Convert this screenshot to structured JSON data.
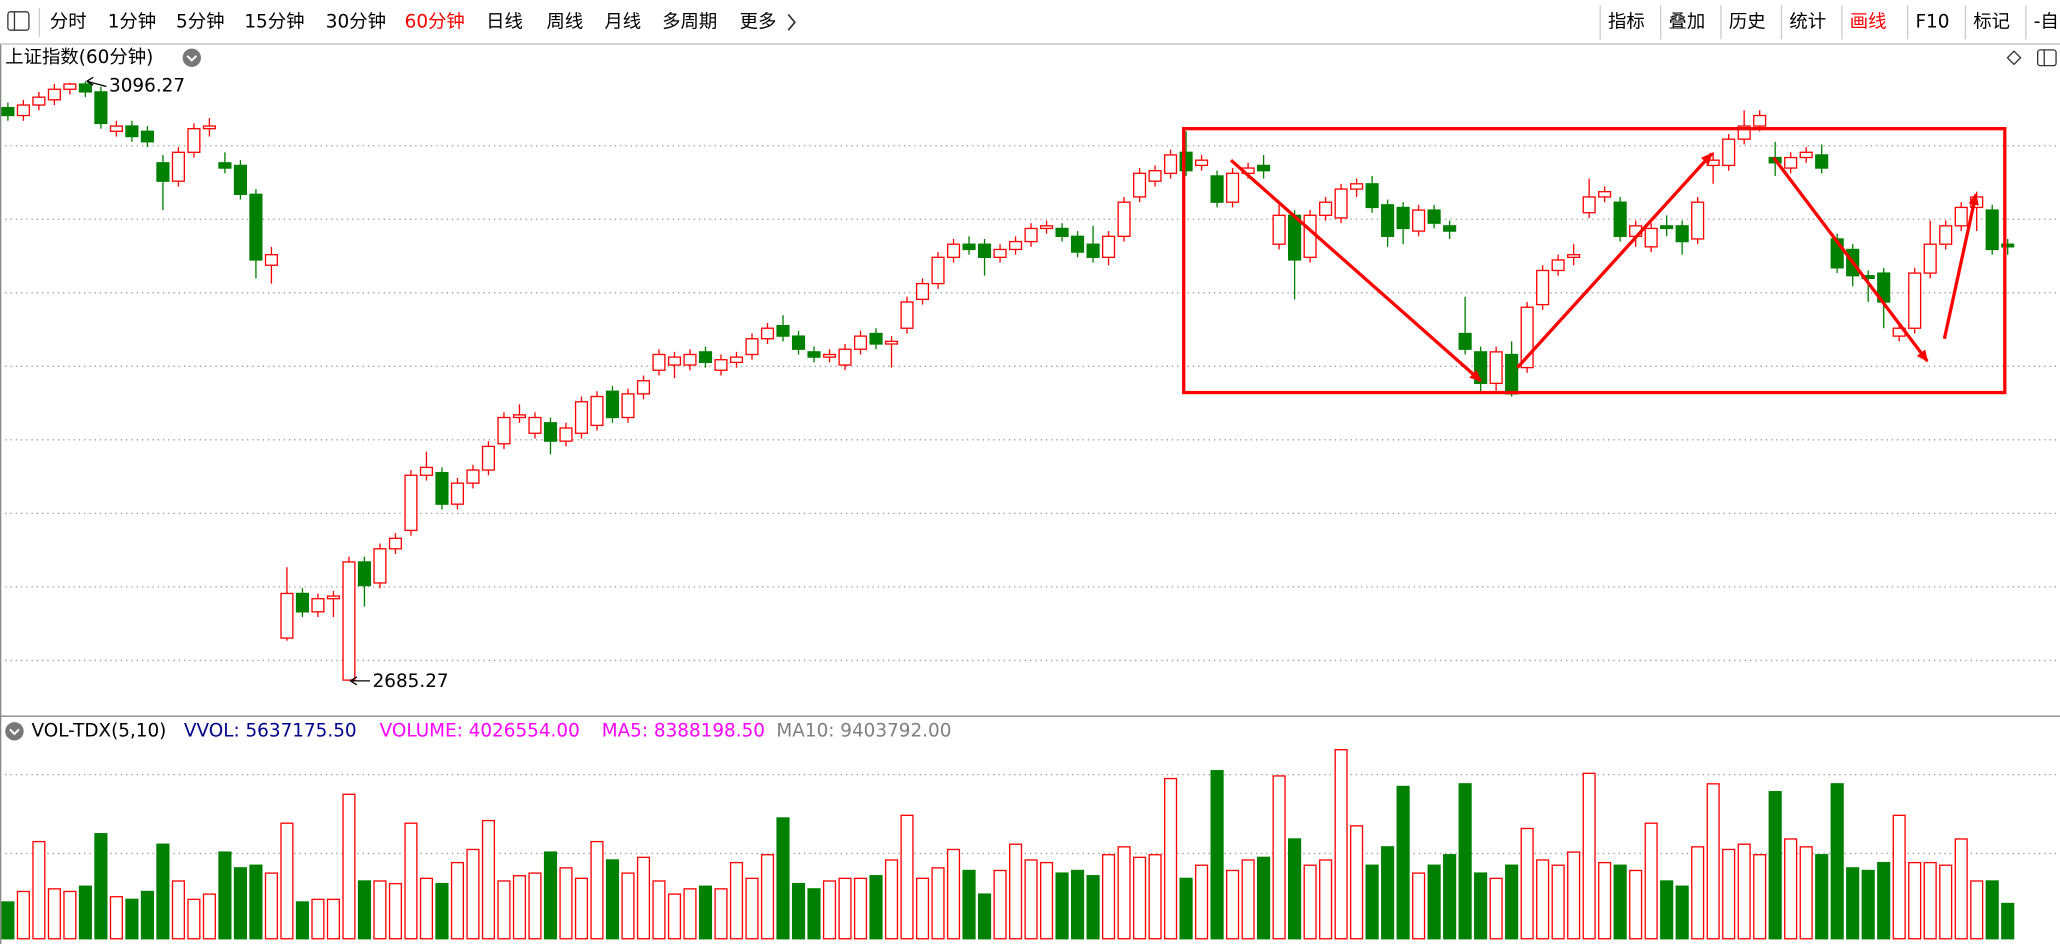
{
  "toolbar": {
    "periods": [
      "分时",
      "1分钟",
      "5分钟",
      "15分钟",
      "30分钟",
      "60分钟",
      "日线",
      "周线",
      "月线",
      "多周期",
      "更多"
    ],
    "active_period": "60分钟",
    "tools": [
      "指标",
      "叠加",
      "历史",
      "统计",
      "画线",
      "F10",
      "标记",
      "-自"
    ],
    "active_tool": "画线",
    "active_color": "#ff0000"
  },
  "chart_data": [
    {
      "type": "candlestick",
      "title": "上证指数(60分钟)",
      "up_color": "#ff0000",
      "down_color": "#008000",
      "ylim": [
        2661.5,
        3121.4
      ],
      "annotations": [
        {
          "text": "3096.27"
        },
        {
          "text": "2685.27"
        }
      ],
      "open": [
        3078.2,
        3072.8,
        3080,
        3083.6,
        3090.8,
        3094.4,
        3089,
        3062,
        3065.6,
        3062,
        3040.4,
        3027.8,
        3047.6,
        3063.8,
        3040.4,
        3038.6,
        3018.8,
        2970.2,
        2714.6,
        2745.2,
        2732.6,
        2741.6,
        2685.8,
        2766.8,
        2752.4,
        2775.8,
        2788.4,
        2826.2,
        2828,
        2806.4,
        2820.8,
        2829.8,
        2847.8,
        2865.8,
        2855,
        2862.2,
        2849.6,
        2855,
        2860.4,
        2883.8,
        2865.8,
        2882,
        2898.2,
        2901.8,
        2901.8,
        2910.8,
        2898.2,
        2903.6,
        2909,
        2919.8,
        2928.8,
        2921.6,
        2910.8,
        2907.2,
        2901.8,
        2912.6,
        2923.4,
        2916.2,
        2927,
        2946.8,
        2957.6,
        2975.6,
        2984.6,
        2984.6,
        2975.6,
        2981,
        2986.4,
        2995.4,
        2995.4,
        2990,
        2984.6,
        2975.6,
        2990,
        3017,
        3027.8,
        3033.2,
        3047.6,
        3038.6,
        3031.4,
        3013.4,
        3033.2,
        3038.6,
        2984.6,
        3004.4,
        2975.6,
        3004.4,
        3002.6,
        3022.4,
        3026,
        3011.6,
        3009.8,
        2993.6,
        3008,
        2997.2,
        2923.4,
        2910.8,
        2889.2,
        2909,
        2900,
        2943.2,
        2966.6,
        2975.6,
        3006.2,
        3017,
        3013.4,
        2990,
        2982.8,
        2997.2,
        2997.2,
        2988.2,
        3038.6,
        3038.6,
        3056.6,
        3065.6,
        3044,
        3036.8,
        3044,
        3045.8,
        2988.2,
        2981,
        2963,
        2964.8,
        2921.6,
        2927,
        2964.8,
        2984.6,
        2997.2,
        3009.8,
        3008,
        2984.6
      ],
      "high": [
        3081.8,
        3083.6,
        3089,
        3094.4,
        3095.3,
        3096.27,
        3092.6,
        3069.2,
        3069.2,
        3065.6,
        3045.8,
        3051.2,
        3067.4,
        3071,
        3047.6,
        3042.2,
        3022.4,
        2982.8,
        2763.2,
        2748.8,
        2745.2,
        2747,
        2770.4,
        2770.4,
        2779.4,
        2786.6,
        2829.8,
        2842.4,
        2831.6,
        2824.4,
        2833.4,
        2849.6,
        2869.4,
        2874.8,
        2869.4,
        2865.8,
        2862.2,
        2880.2,
        2883.8,
        2887.4,
        2885.6,
        2894.6,
        2912.6,
        2910.8,
        2912.6,
        2914.4,
        2909,
        2910.8,
        2923.4,
        2930.6,
        2936,
        2925.2,
        2914.4,
        2912.6,
        2916.2,
        2925.2,
        2927,
        2921.6,
        2948.6,
        2961.2,
        2979.2,
        2988.2,
        2990,
        2988.2,
        2984.6,
        2990,
        2999,
        3000.8,
        2999,
        2993.6,
        2997.2,
        2993.6,
        3017,
        3036.8,
        3038.6,
        3049.4,
        3062,
        3045.8,
        3035,
        3036.8,
        3040.4,
        3045.8,
        3011.6,
        3008,
        3008,
        3017,
        3026,
        3029.6,
        3031.4,
        3015.2,
        3013.4,
        3011.6,
        3011.6,
        3000.8,
        2948.6,
        2914.4,
        2914.4,
        2918,
        2945,
        2970.2,
        2977.4,
        2984.6,
        3029.6,
        3024.2,
        3017,
        3000.8,
        2999,
        3004.4,
        3000.8,
        3017,
        3047.6,
        3060.2,
        3076.4,
        3076.4,
        3054.8,
        3047.6,
        3051.2,
        3053,
        2991.8,
        2984.6,
        2966.6,
        2968.4,
        2930.6,
        2968.4,
        3000.8,
        3000.8,
        3013.4,
        3020.6,
        3011.6,
        2988.2
      ],
      "low": [
        3069.2,
        3069.2,
        3076.4,
        3080,
        3087.2,
        3085.4,
        3063.8,
        3058.4,
        3054.8,
        3051.2,
        3008,
        3024.2,
        3044,
        3058.4,
        3033.2,
        3015.2,
        2961.2,
        2957.6,
        2712.8,
        2729,
        2729,
        2729,
        2685.27,
        2736.2,
        2748.8,
        2772.2,
        2784.8,
        2822.6,
        2802.8,
        2802.8,
        2817.2,
        2826.2,
        2844.2,
        2862.2,
        2851.4,
        2840.6,
        2846,
        2851.4,
        2856.8,
        2862.2,
        2862.2,
        2878.4,
        2894.6,
        2892.8,
        2898.2,
        2900,
        2894.6,
        2900,
        2905.4,
        2916.2,
        2918,
        2909,
        2903.6,
        2903.6,
        2898.2,
        2909,
        2912.6,
        2900,
        2923.4,
        2943.2,
        2954,
        2972,
        2977.4,
        2963,
        2972,
        2977.4,
        2982.8,
        2991.8,
        2986.4,
        2975.6,
        2972,
        2970.2,
        2986.4,
        3013.4,
        3024.2,
        3029.6,
        3031.4,
        3035,
        3009.8,
        3009.8,
        3029.6,
        3029.6,
        2981,
        2946.8,
        2972,
        3000.8,
        2999,
        3017,
        3006.2,
        2982.8,
        2984.6,
        2990,
        2995.4,
        2988.2,
        2909,
        2883.8,
        2882,
        2880.2,
        2896.4,
        2939.6,
        2963,
        2970.2,
        3002.6,
        3013.4,
        2986.4,
        2982.8,
        2979.2,
        2990,
        2977.4,
        2984.6,
        3026,
        3035,
        3053,
        3062,
        3031.4,
        3033.2,
        3040.4,
        3033.2,
        2964.8,
        2955.8,
        2945,
        2927,
        2918,
        2923.4,
        2961.2,
        2981,
        2993.6,
        2993.6,
        2977.4,
        2977.4
      ],
      "close": [
        3072.8,
        3080,
        3085.4,
        3090.8,
        3094.4,
        3089,
        3067.4,
        3065.6,
        3058.4,
        3054.8,
        3027.8,
        3047.6,
        3063.8,
        3065.6,
        3036.8,
        3018.8,
        2973.8,
        2977.4,
        2745.2,
        2732.6,
        2741.6,
        2743.4,
        2766.8,
        2750.6,
        2775.8,
        2783,
        2826.2,
        2831.6,
        2806.4,
        2820.8,
        2829.8,
        2846,
        2865.8,
        2867.6,
        2865.8,
        2849.6,
        2858.6,
        2876.6,
        2880.2,
        2865.8,
        2882,
        2891,
        2909,
        2907.2,
        2909,
        2903.6,
        2905.4,
        2907.2,
        2919.8,
        2927,
        2921.6,
        2912.6,
        2907.2,
        2909,
        2912.6,
        2921.6,
        2916.2,
        2918,
        2945,
        2957.6,
        2975.6,
        2984.6,
        2981,
        2975.6,
        2981,
        2986.4,
        2995.4,
        2997.2,
        2990,
        2979.2,
        2975.6,
        2990,
        3013.4,
        3033.2,
        3035,
        3045.8,
        3035,
        3042.2,
        3013.4,
        3033.2,
        3036.8,
        3035,
        3004.4,
        2973.8,
        3004.4,
        3013.4,
        3022.4,
        3026,
        3009.8,
        2990,
        2995.4,
        3008,
        2999,
        2993.6,
        2912.6,
        2889.2,
        2910.8,
        2882,
        2941.4,
        2966.6,
        2973.8,
        2977.4,
        3017,
        3020.6,
        2990,
        2997.2,
        2995.4,
        2995.4,
        2986.4,
        3013.4,
        3042.2,
        3056.6,
        3065.6,
        3072.8,
        3040.4,
        3044,
        3047.6,
        3036.8,
        2968.4,
        2963,
        2961.2,
        2945,
        2927,
        2964.8,
        2984.6,
        2997.2,
        3009.8,
        3017,
        2981,
        2982.8
      ]
    },
    {
      "type": "volume",
      "indicator": "VOL-TDX(5,10)",
      "ylim": [
        0,
        22800000
      ],
      "legend": [
        {
          "label": "VVOL: 5637175.50",
          "color": "#00008b"
        },
        {
          "label": "VOLUME: 4026554.00",
          "color": "#ff00ff"
        },
        {
          "label": "MA5: 8388198.50",
          "color": "#ff00ff"
        },
        {
          "label": "MA10: 9403792.00",
          "color": "#808080"
        }
      ],
      "values": [
        4200000,
        5400000,
        11100000,
        5700000,
        5400000,
        6000000,
        12000000,
        4800000,
        4500000,
        5400000,
        10800000,
        6600000,
        4500000,
        5100000,
        9900000,
        8100000,
        8400000,
        7500000,
        13200000,
        4200000,
        4500000,
        4500000,
        16500000,
        6600000,
        6600000,
        6300000,
        13200000,
        6900000,
        6300000,
        8700000,
        10200000,
        13500000,
        6600000,
        7200000,
        7500000,
        9900000,
        8100000,
        6900000,
        11100000,
        9000000,
        7500000,
        9300000,
        6600000,
        5100000,
        5700000,
        6000000,
        5700000,
        8700000,
        6900000,
        9600000,
        13800000,
        6300000,
        5700000,
        6600000,
        6900000,
        6900000,
        7200000,
        9000000,
        14100000,
        6900000,
        8100000,
        10200000,
        7800000,
        5100000,
        7800000,
        10800000,
        9000000,
        8700000,
        7500000,
        7800000,
        7200000,
        9600000,
        10500000,
        9300000,
        9600000,
        18300000,
        6900000,
        8400000,
        19200000,
        7800000,
        9000000,
        9300000,
        18600000,
        11400000,
        8400000,
        9000000,
        21600000,
        12900000,
        8400000,
        10500000,
        17400000,
        7500000,
        8400000,
        9600000,
        17700000,
        7500000,
        6900000,
        8400000,
        12600000,
        9000000,
        8400000,
        9900000,
        18900000,
        8700000,
        8400000,
        7800000,
        13200000,
        6600000,
        6000000,
        10500000,
        17700000,
        10200000,
        10800000,
        9600000,
        16800000,
        11400000,
        10500000,
        9600000,
        17700000,
        8100000,
        7800000,
        8700000,
        14100000,
        8700000,
        8700000,
        8400000,
        11400000,
        6600000,
        6600000,
        4026554
      ]
    }
  ]
}
